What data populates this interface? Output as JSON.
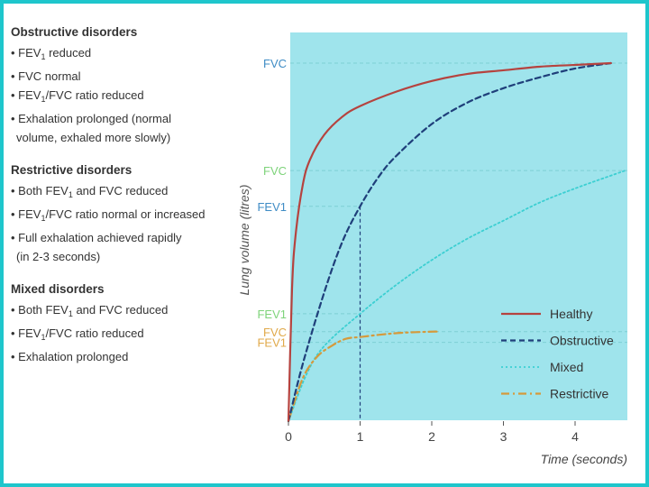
{
  "panel": {
    "sections": [
      {
        "title": "Obstructive disorders",
        "items": [
          {
            "bullet": true,
            "parts": [
              "FEV",
              "1",
              " reduced"
            ]
          },
          {
            "bullet": true,
            "parts": [
              "FVC normal"
            ]
          },
          {
            "bullet": true,
            "parts": [
              "FEV",
              "1",
              "/FVC ratio reduced"
            ]
          },
          {
            "bullet": true,
            "parts": [
              "Exhalation prolonged (normal"
            ]
          },
          {
            "bullet": false,
            "parts": [
              "volume, exhaled more slowly)"
            ]
          }
        ]
      },
      {
        "title": "Restrictive disorders",
        "items": [
          {
            "bullet": true,
            "parts": [
              "Both FEV",
              "1",
              " and FVC reduced"
            ]
          },
          {
            "bullet": true,
            "parts": [
              "FEV",
              "1",
              "/FVC ratio normal or increased"
            ]
          },
          {
            "bullet": true,
            "parts": [
              "Full exhalation achieved rapidly"
            ]
          },
          {
            "bullet": false,
            "parts": [
              "(in 2-3 seconds)"
            ]
          }
        ]
      },
      {
        "title": "Mixed disorders",
        "items": [
          {
            "bullet": true,
            "parts": [
              "Both FEV",
              "1",
              " and FVC reduced"
            ]
          },
          {
            "bullet": true,
            "parts": [
              "FEV",
              "1",
              "/FVC ratio reduced"
            ]
          },
          {
            "bullet": true,
            "parts": [
              "Exhalation prolonged"
            ]
          }
        ]
      }
    ]
  },
  "chart_data": {
    "type": "line",
    "xlabel": "Time (seconds)",
    "ylabel": "Lung volume (litres)",
    "xlim": [
      0,
      4.7
    ],
    "ylim": [
      0,
      1.0
    ],
    "xticks": [
      0,
      1,
      2,
      3,
      4
    ],
    "xtick_labels": [
      "0",
      "1",
      "2",
      "3",
      "4"
    ],
    "colors": {
      "background": "#9fe4ec",
      "healthy": "#b5433f",
      "obstructive": "#1f3f7a",
      "mixed": "#3ccfd2",
      "restrictive": "#d59a3c",
      "blue_label": "#3f8cc5",
      "green_label": "#7ed37a",
      "orange_label": "#e0a94a",
      "guide": "#7ecfd4"
    },
    "reference_lines": [
      {
        "label": "FVC",
        "y": 1.0,
        "color_key": "blue_label"
      },
      {
        "label": "FVC",
        "y": 0.7,
        "color_key": "green_label"
      },
      {
        "label": "FEV1",
        "y": 0.6,
        "color_key": "blue_label",
        "x_end": 1
      },
      {
        "label": "FEV1",
        "y": 0.3,
        "color_key": "green_label",
        "x_end": 1
      },
      {
        "label": "FVC",
        "y": 0.25,
        "color_key": "orange_label"
      },
      {
        "label": "FEV1",
        "y": 0.22,
        "color_key": "orange_label"
      }
    ],
    "series": [
      {
        "name": "Healthy",
        "style": "solid",
        "color_key": "healthy",
        "x": [
          0,
          0.05,
          0.1,
          0.2,
          0.3,
          0.5,
          0.75,
          1.0,
          1.5,
          2.0,
          2.5,
          3.0,
          3.5,
          4.0,
          4.5
        ],
        "y": [
          0,
          0.37,
          0.52,
          0.66,
          0.73,
          0.8,
          0.85,
          0.88,
          0.92,
          0.95,
          0.97,
          0.98,
          0.99,
          0.995,
          1.0
        ]
      },
      {
        "name": "Obstructive",
        "style": "dashed",
        "color_key": "obstructive",
        "x": [
          0,
          0.2,
          0.5,
          0.75,
          1.0,
          1.25,
          1.5,
          2.0,
          2.5,
          3.0,
          3.5,
          4.0,
          4.5
        ],
        "y": [
          0,
          0.16,
          0.36,
          0.5,
          0.6,
          0.68,
          0.74,
          0.83,
          0.89,
          0.93,
          0.96,
          0.985,
          1.0
        ]
      },
      {
        "name": "Mixed",
        "style": "dotted",
        "color_key": "mixed",
        "x": [
          0,
          0.25,
          0.5,
          1.0,
          1.5,
          2.0,
          2.5,
          3.0,
          3.5,
          4.0,
          4.7
        ],
        "y": [
          0,
          0.13,
          0.21,
          0.3,
          0.38,
          0.45,
          0.51,
          0.56,
          0.61,
          0.65,
          0.7
        ]
      },
      {
        "name": "Restrictive",
        "style": "dashdot",
        "color_key": "restrictive",
        "x": [
          0,
          0.2,
          0.4,
          0.6,
          0.8,
          1.0,
          1.3,
          1.6,
          2.0,
          2.1
        ],
        "y": [
          0,
          0.12,
          0.18,
          0.21,
          0.23,
          0.235,
          0.242,
          0.247,
          0.25,
          0.25
        ]
      }
    ],
    "legend": {
      "position": "bottom-right",
      "entries": [
        "Healthy",
        "Obstructive",
        "Mixed",
        "Restrictive"
      ]
    }
  }
}
